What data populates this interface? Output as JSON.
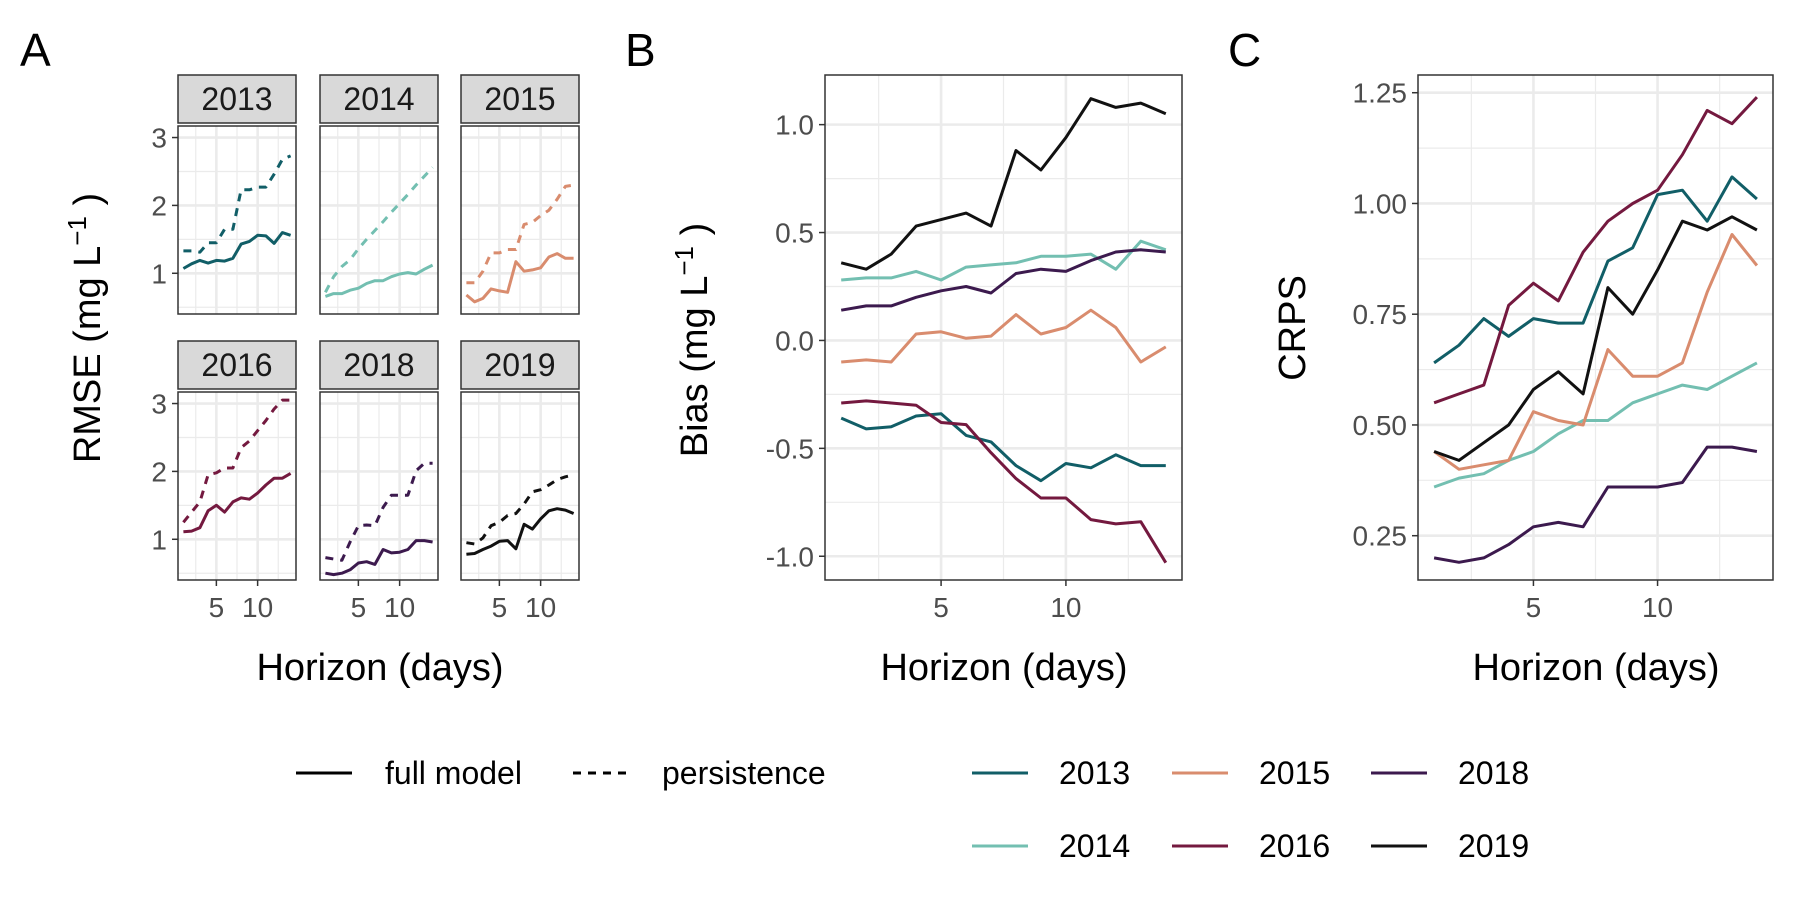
{
  "colors": {
    "2013": "#115e67",
    "2014": "#73bfb1",
    "2015": "#d98c6e",
    "2016": "#74193f",
    "2018": "#3c1a4e",
    "2019": "#111111",
    "strip_fill": "#d9d9d9",
    "grid": "#ebebeb",
    "frame": "#333333",
    "tick_text": "#4d4d4d"
  },
  "panel_letters": [
    "A",
    "B",
    "C"
  ],
  "legend": {
    "linetypes": [
      {
        "label": "full model",
        "dash": "solid"
      },
      {
        "label": "persistence",
        "dash": "dashed"
      }
    ],
    "years": [
      "2013",
      "2015",
      "2018",
      "2014",
      "2016",
      "2019"
    ]
  },
  "chart_data": [
    {
      "panel": "A",
      "type": "line",
      "facets": [
        "2013",
        "2014",
        "2015",
        "2016",
        "2018",
        "2019"
      ],
      "ylabel": "RMSE (mg L",
      "ylabel_sup": "−1",
      "ylabel_end": ")",
      "xlabel": "Horizon (days)",
      "x_ticks": [
        5,
        10
      ],
      "y_ticks": [
        1,
        2,
        3
      ],
      "xlim": [
        0.35,
        14.65
      ],
      "ylim": [
        0.4,
        3.17
      ],
      "x": [
        1,
        2,
        3,
        4,
        5,
        6,
        7,
        8,
        9,
        10,
        11,
        12,
        13,
        14
      ],
      "series": [
        {
          "year": "2013",
          "model": "full model",
          "values": [
            1.07,
            1.14,
            1.19,
            1.15,
            1.19,
            1.18,
            1.22,
            1.43,
            1.47,
            1.56,
            1.55,
            1.44,
            1.6,
            1.56
          ]
        },
        {
          "year": "2013",
          "model": "persistence",
          "values": [
            1.33,
            1.33,
            1.31,
            1.45,
            1.45,
            1.65,
            1.65,
            2.23,
            2.23,
            2.27,
            2.27,
            2.46,
            2.68,
            2.73
          ]
        },
        {
          "year": "2014",
          "model": "full model",
          "values": [
            0.66,
            0.7,
            0.7,
            0.75,
            0.78,
            0.85,
            0.89,
            0.89,
            0.95,
            0.99,
            1.01,
            0.99,
            1.06,
            1.12
          ]
        },
        {
          "year": "2014",
          "model": "persistence",
          "values": [
            0.72,
            0.95,
            1.1,
            1.2,
            1.36,
            1.5,
            1.63,
            1.76,
            1.9,
            2.03,
            2.16,
            2.3,
            2.43,
            2.56
          ]
        },
        {
          "year": "2015",
          "model": "full model",
          "values": [
            0.68,
            0.58,
            0.63,
            0.77,
            0.74,
            0.72,
            1.17,
            1.03,
            1.05,
            1.08,
            1.24,
            1.29,
            1.22,
            1.22
          ]
        },
        {
          "year": "2015",
          "model": "persistence",
          "values": [
            0.86,
            0.86,
            1.03,
            1.3,
            1.3,
            1.35,
            1.35,
            1.72,
            1.75,
            1.85,
            1.93,
            2.09,
            2.28,
            2.3
          ]
        },
        {
          "year": "2016",
          "model": "full model",
          "values": [
            1.11,
            1.12,
            1.17,
            1.42,
            1.5,
            1.4,
            1.55,
            1.61,
            1.59,
            1.68,
            1.8,
            1.9,
            1.9,
            1.97
          ]
        },
        {
          "year": "2016",
          "model": "persistence",
          "values": [
            1.25,
            1.4,
            1.55,
            1.95,
            1.98,
            2.05,
            2.05,
            2.35,
            2.45,
            2.6,
            2.75,
            2.92,
            3.05,
            3.05
          ]
        },
        {
          "year": "2018",
          "model": "full model",
          "values": [
            0.5,
            0.48,
            0.5,
            0.55,
            0.65,
            0.67,
            0.63,
            0.85,
            0.8,
            0.81,
            0.85,
            0.98,
            0.98,
            0.96
          ]
        },
        {
          "year": "2018",
          "model": "persistence",
          "values": [
            0.73,
            0.71,
            0.69,
            0.96,
            1.2,
            1.21,
            1.2,
            1.47,
            1.65,
            1.65,
            1.65,
            2.01,
            2.12,
            2.12
          ]
        },
        {
          "year": "2019",
          "model": "full model",
          "values": [
            0.78,
            0.79,
            0.85,
            0.9,
            0.97,
            0.98,
            0.86,
            1.22,
            1.15,
            1.3,
            1.42,
            1.45,
            1.43,
            1.38
          ]
        },
        {
          "year": "2019",
          "model": "persistence",
          "values": [
            0.95,
            0.93,
            1.02,
            1.2,
            1.25,
            1.35,
            1.38,
            1.52,
            1.7,
            1.73,
            1.8,
            1.88,
            1.92,
            1.95
          ]
        }
      ]
    },
    {
      "panel": "B",
      "type": "line",
      "ylabel": "Bias (mg L",
      "ylabel_sup": "−1",
      "ylabel_end": ")",
      "xlabel": "Horizon (days)",
      "x_ticks": [
        5,
        10
      ],
      "y_ticks": [
        -1.0,
        -0.5,
        0.0,
        0.5,
        1.0
      ],
      "y_tick_labels": [
        "-1.0",
        "-0.5",
        "0.0",
        "0.5",
        "1.0"
      ],
      "xlim": [
        0.35,
        14.65
      ],
      "ylim": [
        -1.11,
        1.23
      ],
      "x": [
        1,
        2,
        3,
        4,
        5,
        6,
        7,
        8,
        9,
        10,
        11,
        12,
        13,
        14
      ],
      "series": [
        {
          "name": "2013",
          "values": [
            -0.36,
            -0.41,
            -0.4,
            -0.35,
            -0.34,
            -0.44,
            -0.47,
            -0.58,
            -0.65,
            -0.57,
            -0.59,
            -0.53,
            -0.58,
            -0.58
          ]
        },
        {
          "name": "2014",
          "values": [
            0.28,
            0.29,
            0.29,
            0.32,
            0.28,
            0.34,
            0.35,
            0.36,
            0.39,
            0.39,
            0.4,
            0.33,
            0.46,
            0.42
          ]
        },
        {
          "name": "2015",
          "values": [
            -0.1,
            -0.09,
            -0.1,
            0.03,
            0.04,
            0.01,
            0.02,
            0.12,
            0.03,
            0.06,
            0.14,
            0.06,
            -0.1,
            -0.03
          ]
        },
        {
          "name": "2016",
          "values": [
            -0.29,
            -0.28,
            -0.29,
            -0.3,
            -0.38,
            -0.39,
            -0.52,
            -0.64,
            -0.73,
            -0.73,
            -0.83,
            -0.85,
            -0.84,
            -1.03
          ]
        },
        {
          "name": "2018",
          "values": [
            0.14,
            0.16,
            0.16,
            0.2,
            0.23,
            0.25,
            0.22,
            0.31,
            0.33,
            0.32,
            0.37,
            0.41,
            0.42,
            0.41
          ]
        },
        {
          "name": "2019",
          "values": [
            0.36,
            0.33,
            0.4,
            0.53,
            0.56,
            0.59,
            0.53,
            0.88,
            0.79,
            0.94,
            1.12,
            1.08,
            1.1,
            1.05
          ]
        }
      ]
    },
    {
      "panel": "C",
      "type": "line",
      "ylabel": "CRPS",
      "xlabel": "Horizon (days)",
      "x_ticks": [
        5,
        10
      ],
      "y_ticks": [
        0.25,
        0.5,
        0.75,
        1.0,
        1.25
      ],
      "y_tick_labels": [
        "0.25",
        "0.50",
        "0.75",
        "1.00",
        "1.25"
      ],
      "xlim": [
        0.35,
        14.65
      ],
      "ylim": [
        0.15,
        1.29
      ],
      "x": [
        1,
        2,
        3,
        4,
        5,
        6,
        7,
        8,
        9,
        10,
        11,
        12,
        13,
        14
      ],
      "series": [
        {
          "name": "2013",
          "values": [
            0.64,
            0.68,
            0.74,
            0.7,
            0.74,
            0.73,
            0.73,
            0.87,
            0.9,
            1.02,
            1.03,
            0.96,
            1.06,
            1.01
          ]
        },
        {
          "name": "2014",
          "values": [
            0.36,
            0.38,
            0.39,
            0.42,
            0.44,
            0.48,
            0.51,
            0.51,
            0.55,
            0.57,
            0.59,
            0.58,
            0.61,
            0.64
          ]
        },
        {
          "name": "2015",
          "values": [
            0.44,
            0.4,
            0.41,
            0.42,
            0.53,
            0.51,
            0.5,
            0.67,
            0.61,
            0.61,
            0.64,
            0.8,
            0.93,
            0.86
          ]
        },
        {
          "name": "2016",
          "values": [
            0.55,
            0.57,
            0.59,
            0.77,
            0.82,
            0.78,
            0.89,
            0.96,
            1.0,
            1.03,
            1.11,
            1.21,
            1.18,
            1.24
          ]
        },
        {
          "name": "2018",
          "values": [
            0.2,
            0.19,
            0.2,
            0.23,
            0.27,
            0.28,
            0.27,
            0.36,
            0.36,
            0.36,
            0.37,
            0.45,
            0.45,
            0.44
          ]
        },
        {
          "name": "2019",
          "values": [
            0.44,
            0.42,
            0.46,
            0.5,
            0.58,
            0.62,
            0.57,
            0.81,
            0.75,
            0.85,
            0.96,
            0.94,
            0.97,
            0.94
          ]
        }
      ]
    }
  ]
}
